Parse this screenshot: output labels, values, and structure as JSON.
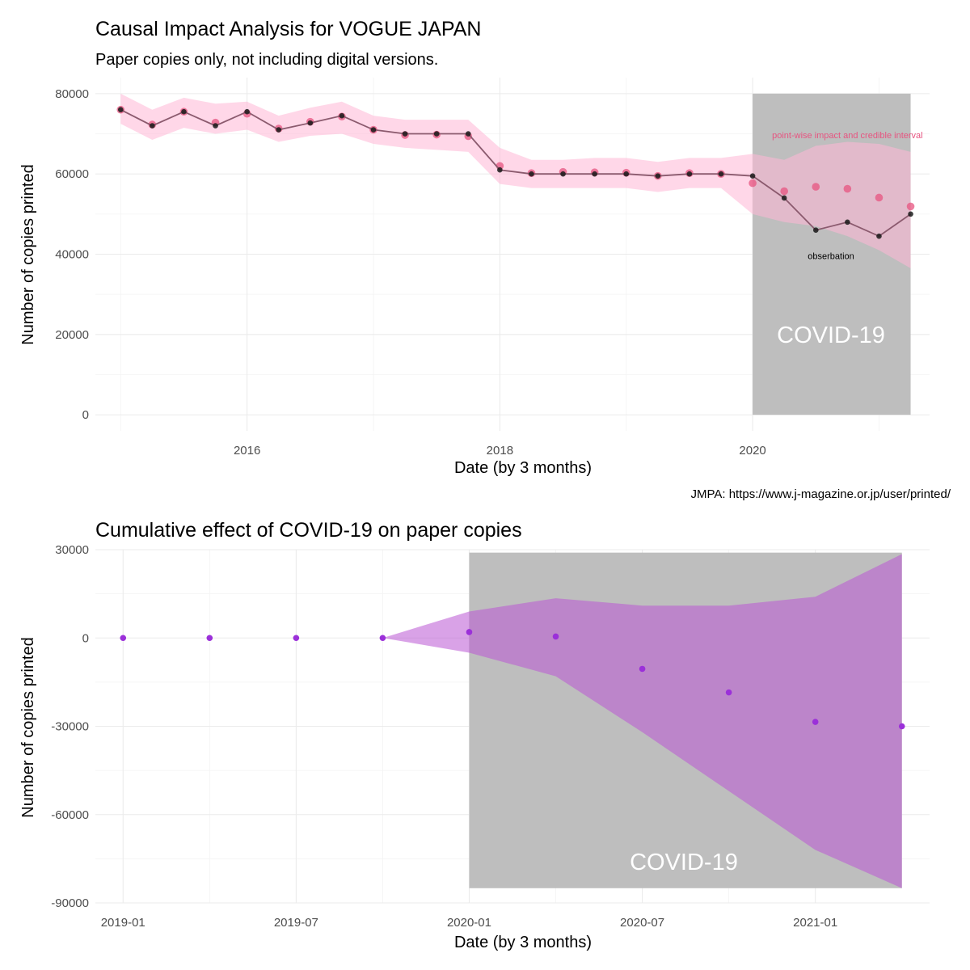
{
  "chart_data": [
    {
      "type": "line",
      "title": "Causal Impact Analysis for VOGUE JAPAN",
      "subtitle": "Paper copies only, not including digital versions.",
      "xlabel": "Date (by 3 months)",
      "ylabel": "Number of copies printed",
      "caption": "JMPA: https://www.j-magazine.or.jp/user/printed/",
      "xlim": [
        2014.8,
        2021.4
      ],
      "ylim": [
        -4000,
        84000
      ],
      "x_ticks": [
        {
          "v": 2016,
          "label": "2016"
        },
        {
          "v": 2018,
          "label": "2018"
        },
        {
          "v": 2020,
          "label": "2020"
        }
      ],
      "y_ticks": [
        {
          "v": 0,
          "label": "0"
        },
        {
          "v": 20000,
          "label": "20000"
        },
        {
          "v": 40000,
          "label": "40000"
        },
        {
          "v": 60000,
          "label": "60000"
        },
        {
          "v": 80000,
          "label": "80000"
        }
      ],
      "x_minor": [
        2015,
        2017,
        2019,
        2021
      ],
      "y_minor": [
        10000,
        30000,
        50000,
        70000
      ],
      "grid": true,
      "shaded_region": {
        "x0": 2020,
        "x1": 2021.25,
        "y0": 0,
        "y1": 80000,
        "label": "COVID-19",
        "label_x": 2020.62,
        "label_y": 20000,
        "color": "#bebebe"
      },
      "annotations": [
        {
          "text": "point-wise impact and credible interval",
          "x": 2020.75,
          "y": 69700,
          "color": "#e75480"
        },
        {
          "text": "obserbation",
          "x": 2020.62,
          "y": 39600,
          "color": "#000000"
        }
      ],
      "series": [
        {
          "kind": "prediction-interval",
          "color": "#ffb6d5",
          "x": [
            2015.0,
            2015.25,
            2015.5,
            2015.75,
            2016.0,
            2016.25,
            2016.5,
            2016.75,
            2017.0,
            2017.25,
            2017.5,
            2017.75,
            2018.0,
            2018.25,
            2018.5,
            2018.75,
            2019.0,
            2019.25,
            2019.5,
            2019.75,
            2020.0,
            2020.25,
            2020.5,
            2020.75,
            2021.0,
            2021.25
          ],
          "lower": [
            72500,
            68500,
            71500,
            70000,
            71000,
            68000,
            69500,
            70000,
            67500,
            66500,
            66000,
            65500,
            57500,
            56500,
            56500,
            56500,
            56500,
            55500,
            56500,
            56500,
            50000,
            48000,
            47000,
            44500,
            41000,
            36500
          ],
          "upper": [
            80000,
            76000,
            79000,
            77500,
            78000,
            74500,
            76500,
            78000,
            74500,
            73500,
            73500,
            73500,
            66500,
            63500,
            63500,
            64000,
            64000,
            63000,
            64000,
            64000,
            65000,
            63500,
            67000,
            68000,
            67500,
            65500
          ]
        },
        {
          "kind": "prediction",
          "color": "#e75480",
          "x": [
            2015.0,
            2015.25,
            2015.5,
            2015.75,
            2016.0,
            2016.25,
            2016.5,
            2016.75,
            2017.0,
            2017.25,
            2017.5,
            2017.75,
            2018.0,
            2018.25,
            2018.5,
            2018.75,
            2019.0,
            2019.25,
            2019.5,
            2019.75,
            2020.0,
            2020.25,
            2020.5,
            2020.75,
            2021.0,
            2021.25
          ],
          "values": [
            76000,
            72300,
            75500,
            72800,
            75000,
            71300,
            73000,
            74300,
            71000,
            69700,
            69800,
            69400,
            62000,
            60200,
            60500,
            60400,
            60300,
            59500,
            60200,
            60000,
            57700,
            55700,
            56800,
            56300,
            54100,
            51900
          ]
        },
        {
          "kind": "observation",
          "color": "#000000",
          "x": [
            2015.0,
            2015.25,
            2015.5,
            2015.75,
            2016.0,
            2016.25,
            2016.5,
            2016.75,
            2017.0,
            2017.25,
            2017.5,
            2017.75,
            2018.0,
            2018.25,
            2018.5,
            2018.75,
            2019.0,
            2019.25,
            2019.5,
            2019.75,
            2020.0,
            2020.25,
            2020.5,
            2020.75,
            2021.0,
            2021.25
          ],
          "values": [
            76000,
            72000,
            75500,
            72000,
            75500,
            71000,
            72700,
            74500,
            71000,
            70000,
            70000,
            70000,
            61000,
            60000,
            60000,
            60000,
            60000,
            59500,
            60000,
            60000,
            59500,
            54000,
            46000,
            48000,
            44500,
            50000
          ]
        }
      ]
    },
    {
      "type": "area",
      "title": "Cumulative effect of COVID-19 on paper copies",
      "xlabel": "Date (by 3 months)",
      "ylabel": "Number of copies printed",
      "xlim": [
        2018.92,
        2021.33
      ],
      "ylim": [
        -90000,
        30000
      ],
      "x_ticks": [
        {
          "v": 2019.0,
          "label": "2019-01"
        },
        {
          "v": 2019.5,
          "label": "2019-07"
        },
        {
          "v": 2020.0,
          "label": "2020-01"
        },
        {
          "v": 2020.5,
          "label": "2020-07"
        },
        {
          "v": 2021.0,
          "label": "2021-01"
        }
      ],
      "y_ticks": [
        {
          "v": -90000,
          "label": "-90000"
        },
        {
          "v": -60000,
          "label": "-60000"
        },
        {
          "v": -30000,
          "label": "-30000"
        },
        {
          "v": 0,
          "label": "0"
        },
        {
          "v": 30000,
          "label": "30000"
        }
      ],
      "x_minor": [
        2019.25,
        2019.75,
        2020.25,
        2020.75
      ],
      "y_minor": [
        -75000,
        -45000,
        -15000,
        15000
      ],
      "grid": true,
      "shaded_region": {
        "x0": 2020.0,
        "x1": 2021.25,
        "y0": -85000,
        "y1": 29000,
        "label": "COVID-19",
        "label_x": 2020.62,
        "label_y": -76000,
        "color": "#bebebe"
      },
      "series": [
        {
          "kind": "cumulative-interval",
          "color": "#ba55d3",
          "x": [
            2019.75,
            2020.0,
            2020.25,
            2020.5,
            2020.75,
            2021.0,
            2021.25
          ],
          "lower": [
            0,
            -5000,
            -13000,
            -32000,
            -52000,
            -72000,
            -85000
          ],
          "upper": [
            0,
            9000,
            13500,
            11000,
            11000,
            14000,
            28500
          ]
        },
        {
          "kind": "cumulative-effect",
          "color": "#9b30d9",
          "x": [
            2019.0,
            2019.25,
            2019.5,
            2019.75,
            2020.0,
            2020.25,
            2020.5,
            2020.75,
            2021.0,
            2021.25
          ],
          "values": [
            0,
            0,
            0,
            0,
            2000,
            500,
            -10500,
            -18500,
            -28500,
            -30000
          ]
        }
      ]
    }
  ]
}
